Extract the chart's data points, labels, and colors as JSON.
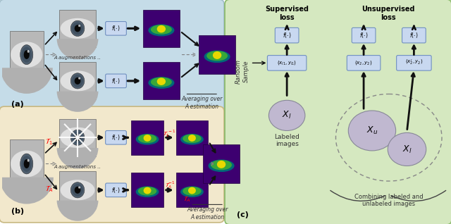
{
  "bg_a_color": "#c5dce8",
  "bg_b_color": "#f2e8cc",
  "bg_c_color": "#d5e8c0",
  "purple_bg": "#3d0070",
  "box_fill": "#c8d8f0",
  "box_edge": "#7090c0",
  "label_a": "(a)",
  "label_b": "(b)",
  "label_c": "(c)",
  "sup_loss_text": "Supervised\nloss",
  "unsup_loss_text": "Unsupervised\nloss",
  "averaging_text": "Averaging over\nA estimation",
  "aug_text": "A augmentations ..",
  "labeled_text": "Labeled\nimages",
  "combining_text": "Combining labeled and\nunlabeled images",
  "random_sample_text": "Random\nSample",
  "eye_gray_light": "#d8d8d8",
  "eye_gray_mid": "#a8a8a8",
  "eye_gray_dark": "#404040",
  "eye_iris": "#506070",
  "eye_pupil": "#101010",
  "seg_teal": "#006878",
  "seg_green": "#38a838",
  "seg_yellow": "#e8d800",
  "circle_fill": "#c0b8d0",
  "circle_edge": "#888898"
}
